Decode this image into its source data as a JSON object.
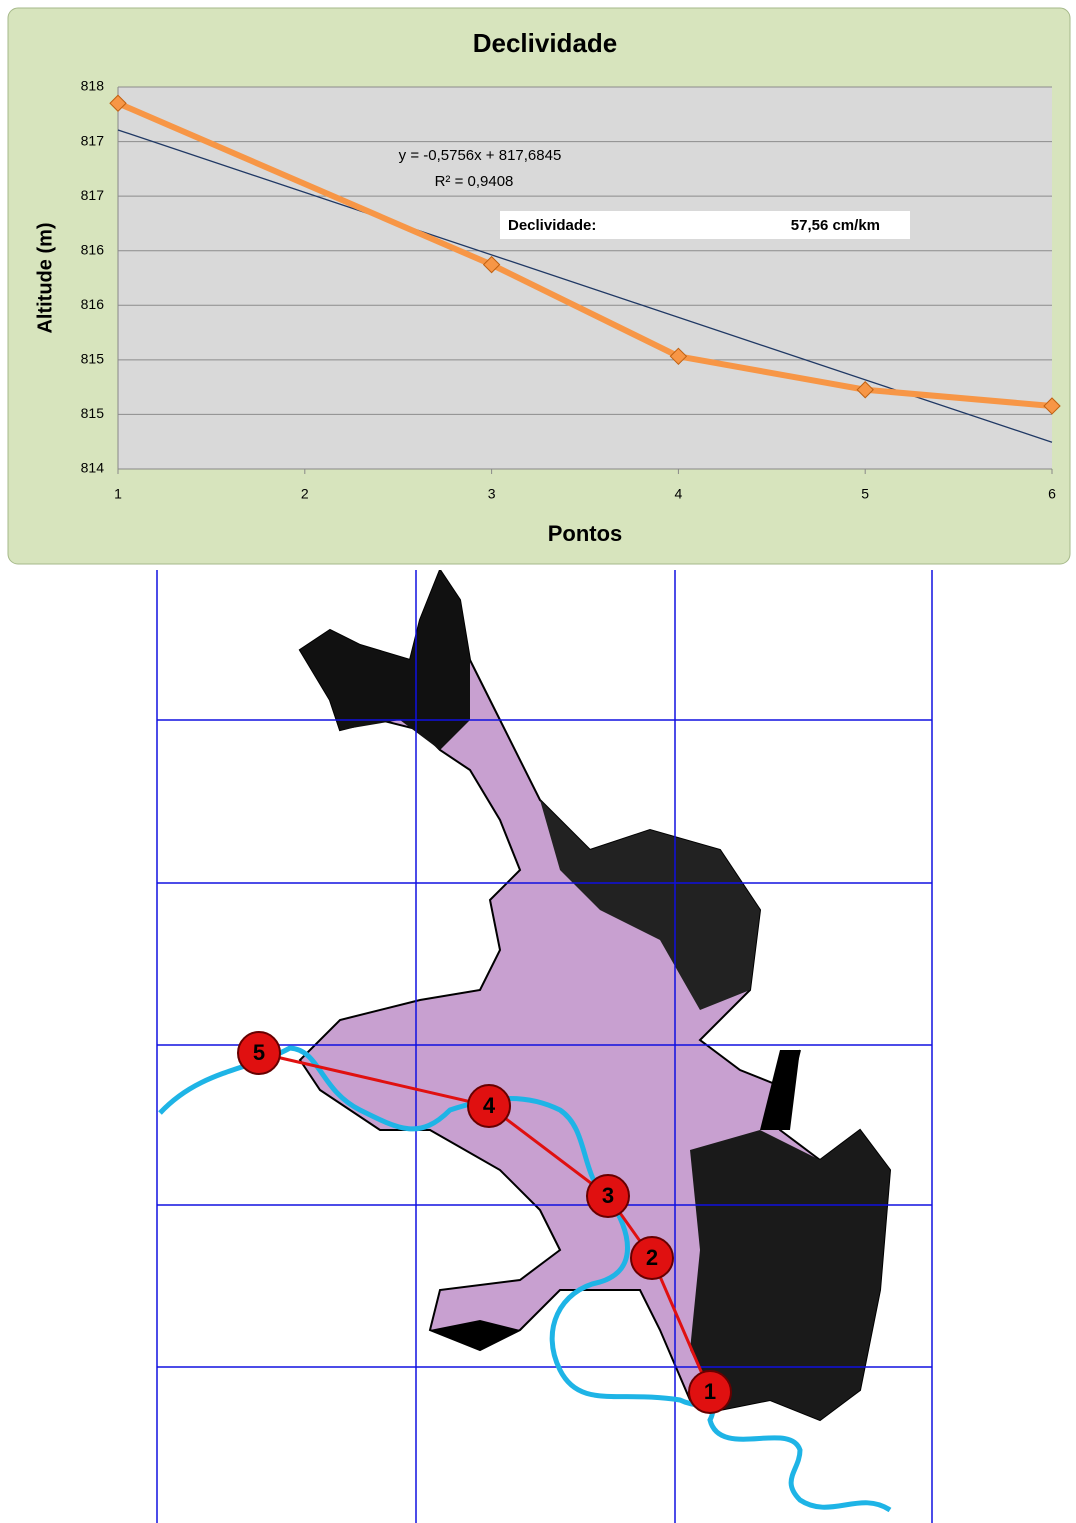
{
  "chart_data": {
    "type": "line",
    "title": "Declividade",
    "x_label": "Pontos",
    "y_label": "Altitude (m)",
    "series": [
      {
        "x": [
          1,
          3,
          4,
          5,
          6
        ],
        "values": [
          817.83,
          816.14,
          815.18,
          814.83,
          814.66
        ],
        "color": "#f79646"
      }
    ],
    "trendline": {
      "x": [
        1,
        6
      ],
      "values": [
        817.55,
        814.28
      ],
      "color": "#1f3864"
    },
    "xlim": [
      1,
      6
    ],
    "xticks": [
      1,
      2,
      3,
      4,
      5,
      6
    ],
    "ylim": [
      814,
      818
    ],
    "yticks": [
      814,
      {
        "value": 814.5714,
        "label": "815"
      },
      {
        "value": 815.1429,
        "label": "815"
      },
      {
        "value": 815.7143,
        "label": "816"
      },
      {
        "value": 816.2857,
        "label": "816"
      },
      {
        "value": 816.8571,
        "label": "817"
      },
      {
        "value": 817.4286,
        "label": "817"
      },
      818
    ],
    "grid": true,
    "annotations": {
      "equation": "y = -0,5756x + 817,6845",
      "r_squared": "R² = 0,9408",
      "slope_label": "Declividade:",
      "slope_value": "57,56 cm/km"
    }
  },
  "map": {
    "points": [
      {
        "label": "1"
      },
      {
        "label": "2"
      },
      {
        "label": "3"
      },
      {
        "label": "4"
      },
      {
        "label": "5"
      }
    ]
  }
}
